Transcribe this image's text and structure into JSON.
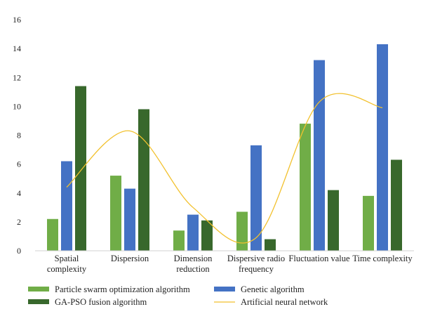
{
  "chart_data": {
    "type": "bar",
    "categories": [
      [
        "Spatial",
        "complexity"
      ],
      [
        "Dispersion"
      ],
      [
        "Dimension",
        "reduction"
      ],
      [
        "Dispersive radio",
        "frequency"
      ],
      [
        "Fluctuation value"
      ],
      [
        "Time complexity"
      ]
    ],
    "series": [
      {
        "name": "Particle swarm optimization algorithm",
        "kind": "bar",
        "color": "#70ad47",
        "values": [
          2.2,
          5.2,
          1.4,
          2.7,
          8.8,
          3.8
        ]
      },
      {
        "name": "Genetic algorithm",
        "kind": "bar",
        "color": "#4472c4",
        "values": [
          6.2,
          4.3,
          2.5,
          7.3,
          13.2,
          14.3
        ]
      },
      {
        "name": "GA-PSO fusion algorithm",
        "kind": "bar",
        "color": "#38682c",
        "values": [
          11.4,
          9.8,
          2.1,
          0.8,
          4.2,
          6.3
        ]
      },
      {
        "name": "Artificial neural network",
        "kind": "line",
        "color": "#f2c12e",
        "values": [
          4.4,
          8.3,
          3.0,
          0.9,
          10.3,
          9.9
        ]
      }
    ],
    "ylim": [
      0,
      16
    ],
    "yticks": [
      0,
      2,
      4,
      6,
      8,
      10,
      12,
      14,
      16
    ],
    "title": "",
    "xlabel": "",
    "ylabel": "",
    "grid": false,
    "legend": "bottom"
  }
}
